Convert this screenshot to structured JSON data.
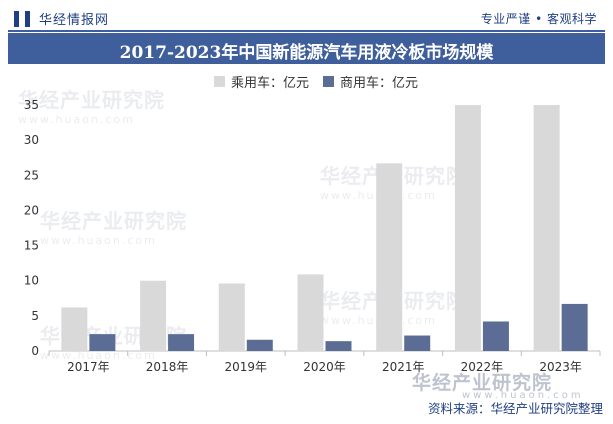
{
  "header": {
    "logo_text": "华经情报网",
    "slogan_left": "专业严谨",
    "slogan_dot": "•",
    "slogan_right": "客观科学"
  },
  "colors": {
    "brand": "#3f5f9c",
    "series_passenger": "#d9d9d9",
    "series_commercial": "#5b6d94"
  },
  "watermark": {
    "text": "华经产业研究院",
    "url": "www.huaon.com"
  },
  "footer": {
    "mark_text": "华经产业研究院",
    "mark_url": "www.huaon.com",
    "source": "资料来源：华经产业研究院整理"
  },
  "chart_data": {
    "type": "bar",
    "title": "2017-2023年中国新能源汽车用液冷板市场规模",
    "categories": [
      "2017年",
      "2018年",
      "2019年",
      "2020年",
      "2021年",
      "2022年",
      "2023年"
    ],
    "series": [
      {
        "name": "乘用车：亿元",
        "color": "#d9d9d9",
        "values": [
          6.2,
          10.0,
          9.6,
          10.9,
          26.7,
          35.0,
          35.0
        ]
      },
      {
        "name": "商用车：亿元",
        "color": "#5b6d94",
        "values": [
          2.4,
          2.4,
          1.6,
          1.4,
          2.2,
          4.2,
          6.7
        ]
      }
    ],
    "y_ticks": [
      0,
      5,
      10,
      15,
      20,
      25,
      30,
      35
    ],
    "ylim": [
      0,
      35
    ],
    "grid": false,
    "legend_position": "top"
  }
}
